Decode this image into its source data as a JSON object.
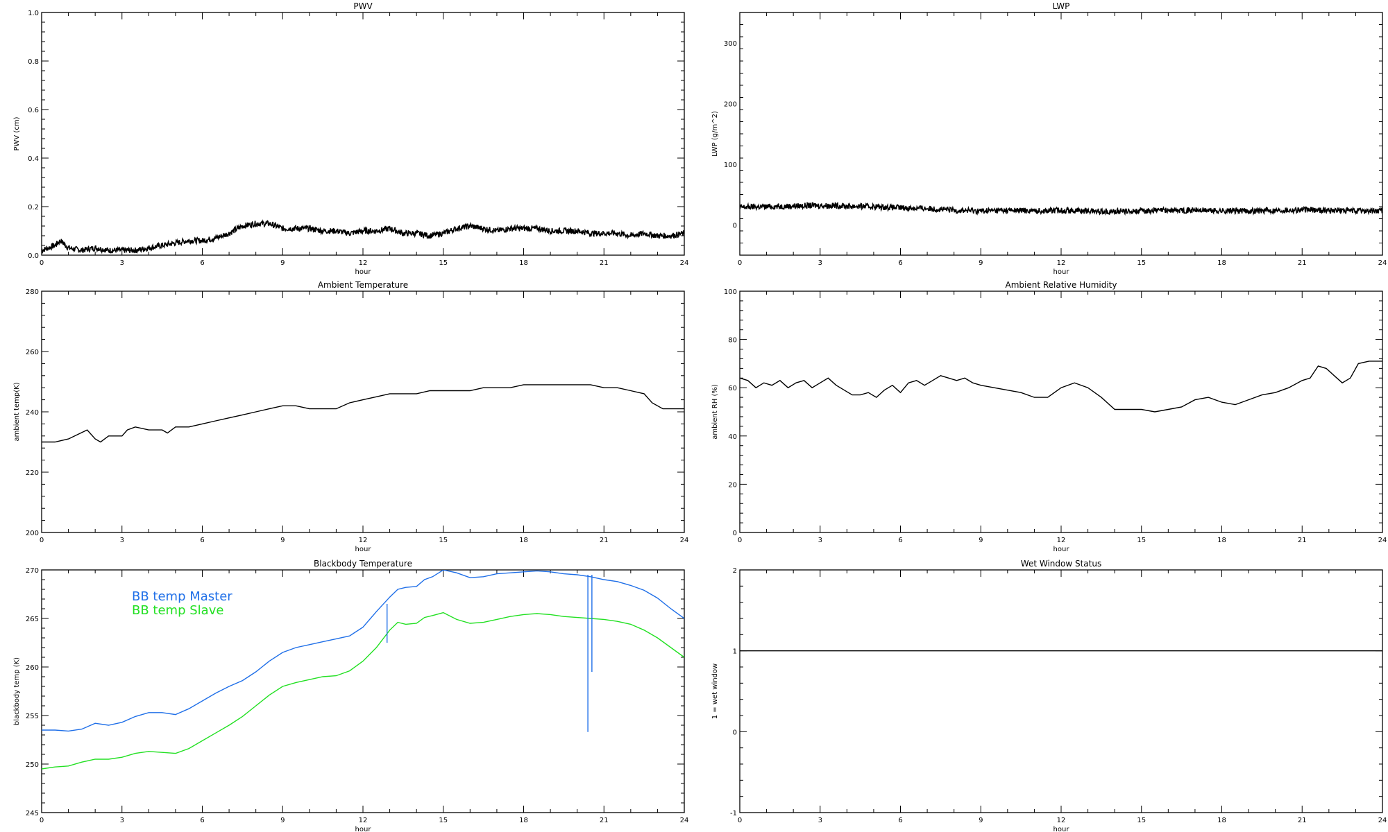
{
  "chart_data": [
    {
      "id": "pwv",
      "type": "line",
      "title": "PWV",
      "xlabel": "hour",
      "ylabel": "PWV (cm)",
      "xlim": [
        0,
        24
      ],
      "ylim": [
        0,
        1.0
      ],
      "xticks": [
        0,
        3,
        6,
        9,
        12,
        15,
        18,
        21,
        24
      ],
      "yticks": [
        0.0,
        0.2,
        0.4,
        0.6,
        0.8,
        1.0
      ],
      "ytick_labels": [
        "0.0",
        "0.2",
        "0.4",
        "0.6",
        "0.8",
        "1.0"
      ],
      "grid": false,
      "style": "scatter-dense",
      "series": [
        {
          "color": "#000000",
          "x": [
            0,
            0.5,
            0.7,
            1.0,
            1.5,
            2.0,
            2.5,
            3.0,
            3.5,
            4.0,
            4.5,
            5.0,
            5.5,
            6.0,
            6.5,
            7.0,
            7.5,
            8.0,
            8.5,
            9.0,
            9.5,
            10.0,
            10.5,
            11.0,
            11.5,
            12.0,
            12.5,
            13.0,
            13.5,
            14.0,
            14.5,
            15.0,
            15.5,
            16.0,
            16.5,
            17.0,
            17.5,
            18.0,
            18.5,
            19.0,
            19.5,
            20.0,
            20.5,
            21.0,
            21.5,
            22.0,
            22.5,
            23.0,
            23.5,
            24.0
          ],
          "y": [
            0.02,
            0.04,
            0.06,
            0.03,
            0.02,
            0.03,
            0.02,
            0.02,
            0.02,
            0.03,
            0.04,
            0.05,
            0.06,
            0.06,
            0.07,
            0.09,
            0.12,
            0.13,
            0.13,
            0.11,
            0.11,
            0.11,
            0.1,
            0.1,
            0.09,
            0.1,
            0.1,
            0.11,
            0.09,
            0.09,
            0.08,
            0.09,
            0.11,
            0.12,
            0.11,
            0.1,
            0.11,
            0.11,
            0.11,
            0.1,
            0.1,
            0.1,
            0.09,
            0.09,
            0.09,
            0.08,
            0.09,
            0.08,
            0.08,
            0.09
          ]
        }
      ]
    },
    {
      "id": "lwp",
      "type": "line",
      "title": "LWP",
      "xlabel": "hour",
      "ylabel": "LWP (g/m^2)",
      "xlim": [
        0,
        24
      ],
      "ylim": [
        -50,
        350
      ],
      "xticks": [
        0,
        3,
        6,
        9,
        12,
        15,
        18,
        21,
        24
      ],
      "yticks": [
        0,
        100,
        200,
        300
      ],
      "ytick_labels": [
        "0",
        "100",
        "200",
        "300"
      ],
      "grid": false,
      "style": "scatter-dense",
      "series": [
        {
          "color": "#000000",
          "x": [
            0,
            1,
            2,
            3,
            4,
            5,
            6,
            7,
            8,
            9,
            10,
            11,
            12,
            13,
            14,
            15,
            16,
            17,
            18,
            19,
            20,
            21,
            22,
            23,
            24
          ],
          "y": [
            29,
            30,
            31,
            32,
            31,
            30,
            28,
            27,
            24,
            23,
            24,
            23,
            24,
            23,
            22,
            23,
            24,
            24,
            23,
            23,
            24,
            25,
            24,
            23,
            23
          ]
        }
      ]
    },
    {
      "id": "ambient-temperature",
      "type": "line",
      "title": "Ambient Temperature",
      "xlabel": "hour",
      "ylabel": "ambient temp(K)",
      "xlim": [
        0,
        24
      ],
      "ylim": [
        200,
        280
      ],
      "xticks": [
        0,
        3,
        6,
        9,
        12,
        15,
        18,
        21,
        24
      ],
      "yticks": [
        200,
        220,
        240,
        260,
        280
      ],
      "ytick_labels": [
        "200",
        "220",
        "240",
        "260",
        "280"
      ],
      "grid": false,
      "style": "line",
      "series": [
        {
          "color": "#000000",
          "x": [
            0,
            0.5,
            1.0,
            1.7,
            2.0,
            2.2,
            2.5,
            3.0,
            3.2,
            3.5,
            4.0,
            4.5,
            4.7,
            5.0,
            5.5,
            6.0,
            6.5,
            7.0,
            7.5,
            8.0,
            8.5,
            9.0,
            9.5,
            10.0,
            10.5,
            11.0,
            11.5,
            12.0,
            12.5,
            13.0,
            13.5,
            14.0,
            14.5,
            15.0,
            15.5,
            16.0,
            16.5,
            17.0,
            17.5,
            18.0,
            18.5,
            19.0,
            19.5,
            20.0,
            20.5,
            21.0,
            21.5,
            22.0,
            22.5,
            22.8,
            23.2,
            23.6,
            24.0
          ],
          "y": [
            230,
            230,
            231,
            234,
            231,
            230,
            232,
            232,
            234,
            235,
            234,
            234,
            233,
            235,
            235,
            236,
            237,
            238,
            239,
            240,
            241,
            242,
            242,
            241,
            241,
            241,
            243,
            244,
            245,
            246,
            246,
            246,
            247,
            247,
            247,
            247,
            248,
            248,
            248,
            249,
            249,
            249,
            249,
            249,
            249,
            248,
            248,
            247,
            246,
            243,
            241,
            241,
            241
          ]
        }
      ]
    },
    {
      "id": "ambient-relative-humidity",
      "type": "line",
      "title": "Ambient Relative Humidity",
      "xlabel": "hour",
      "ylabel": "ambient RH (%)",
      "xlim": [
        0,
        24
      ],
      "ylim": [
        0,
        100
      ],
      "xticks": [
        0,
        3,
        6,
        9,
        12,
        15,
        18,
        21,
        24
      ],
      "yticks": [
        0,
        20,
        40,
        60,
        80,
        100
      ],
      "ytick_labels": [
        "0",
        "20",
        "40",
        "60",
        "80",
        "100"
      ],
      "grid": false,
      "style": "line",
      "series": [
        {
          "color": "#000000",
          "x": [
            0,
            0.3,
            0.6,
            0.9,
            1.2,
            1.5,
            1.8,
            2.1,
            2.4,
            2.7,
            3.0,
            3.3,
            3.6,
            3.9,
            4.2,
            4.5,
            4.8,
            5.1,
            5.4,
            5.7,
            6.0,
            6.3,
            6.6,
            6.9,
            7.2,
            7.5,
            7.8,
            8.1,
            8.4,
            8.7,
            9.0,
            9.5,
            10.0,
            10.5,
            11.0,
            11.5,
            12.0,
            12.5,
            13.0,
            13.5,
            14.0,
            14.5,
            15.0,
            15.5,
            16.0,
            16.5,
            17.0,
            17.5,
            18.0,
            18.5,
            19.0,
            19.5,
            20.0,
            20.5,
            21.0,
            21.3,
            21.6,
            21.9,
            22.2,
            22.5,
            22.8,
            23.1,
            23.5,
            24.0
          ],
          "y": [
            64,
            63,
            60,
            62,
            61,
            63,
            60,
            62,
            63,
            60,
            62,
            64,
            61,
            59,
            57,
            57,
            58,
            56,
            59,
            61,
            58,
            62,
            63,
            61,
            63,
            65,
            64,
            63,
            64,
            62,
            61,
            60,
            59,
            58,
            56,
            56,
            60,
            62,
            60,
            56,
            51,
            51,
            51,
            50,
            51,
            52,
            55,
            56,
            54,
            53,
            55,
            57,
            58,
            60,
            63,
            64,
            69,
            68,
            65,
            62,
            64,
            70,
            71,
            71
          ]
        }
      ]
    },
    {
      "id": "blackbody-temperature",
      "type": "line",
      "title": "Blackbody Temperature",
      "xlabel": "hour",
      "ylabel": "blackbody temp (K)",
      "xlim": [
        0,
        24
      ],
      "ylim": [
        245,
        270
      ],
      "xticks": [
        0,
        3,
        6,
        9,
        12,
        15,
        18,
        21,
        24
      ],
      "yticks": [
        245,
        250,
        255,
        260,
        265,
        270
      ],
      "ytick_labels": [
        "245",
        "250",
        "255",
        "260",
        "265",
        "270"
      ],
      "grid": false,
      "style": "line",
      "legend": [
        "BB temp Master",
        "BB temp Slave"
      ],
      "legend_colors": [
        "#1f6fe8",
        "#22e022"
      ],
      "spikes": [
        {
          "color": "#1f6fe8",
          "x": 12.9,
          "y_from": 266.5,
          "y_to": 262.5
        },
        {
          "color": "#1f6fe8",
          "x": 20.4,
          "y_from": 269.5,
          "y_to": 253.3
        },
        {
          "color": "#1f6fe8",
          "x": 20.55,
          "y_from": 269.5,
          "y_to": 259.5
        }
      ],
      "series": [
        {
          "color": "#1f6fe8",
          "x": [
            0,
            0.5,
            1.0,
            1.5,
            2.0,
            2.5,
            3.0,
            3.5,
            4.0,
            4.5,
            5.0,
            5.5,
            6.0,
            6.5,
            7.0,
            7.5,
            8.0,
            8.5,
            9.0,
            9.5,
            10.0,
            10.5,
            11.0,
            11.5,
            12.0,
            12.5,
            13.0,
            13.3,
            13.6,
            14.0,
            14.3,
            14.6,
            15.0,
            15.5,
            16.0,
            16.5,
            17.0,
            17.5,
            18.0,
            18.5,
            19.0,
            19.5,
            20.0,
            20.5,
            21.0,
            21.5,
            22.0,
            22.5,
            23.0,
            23.5,
            24.0
          ],
          "y": [
            253.5,
            253.5,
            253.4,
            253.6,
            254.2,
            254.0,
            254.3,
            254.9,
            255.3,
            255.3,
            255.1,
            255.7,
            256.5,
            257.3,
            258.0,
            258.6,
            259.5,
            260.6,
            261.5,
            262.0,
            262.3,
            262.6,
            262.9,
            263.2,
            264.1,
            265.7,
            267.2,
            268.0,
            268.2,
            268.3,
            269.0,
            269.3,
            270.0,
            269.7,
            269.2,
            269.3,
            269.6,
            269.7,
            269.8,
            269.9,
            269.8,
            269.6,
            269.5,
            269.3,
            269.0,
            268.8,
            268.4,
            267.9,
            267.1,
            266.0,
            265.0
          ]
        },
        {
          "color": "#22e022",
          "x": [
            0,
            0.5,
            1.0,
            1.5,
            2.0,
            2.5,
            3.0,
            3.5,
            4.0,
            4.5,
            5.0,
            5.5,
            6.0,
            6.5,
            7.0,
            7.5,
            8.0,
            8.5,
            9.0,
            9.5,
            10.0,
            10.5,
            11.0,
            11.5,
            12.0,
            12.5,
            13.0,
            13.3,
            13.6,
            14.0,
            14.3,
            14.6,
            15.0,
            15.5,
            16.0,
            16.5,
            17.0,
            17.5,
            18.0,
            18.5,
            19.0,
            19.5,
            20.0,
            20.5,
            21.0,
            21.5,
            22.0,
            22.5,
            23.0,
            23.5,
            24.0
          ],
          "y": [
            249.5,
            249.7,
            249.8,
            250.2,
            250.5,
            250.5,
            250.7,
            251.1,
            251.3,
            251.2,
            251.1,
            251.6,
            252.4,
            253.2,
            254.0,
            254.9,
            256.0,
            257.1,
            258.0,
            258.4,
            258.7,
            259.0,
            259.1,
            259.6,
            260.6,
            262.0,
            263.8,
            264.6,
            264.4,
            264.5,
            265.1,
            265.3,
            265.6,
            264.9,
            264.5,
            264.6,
            264.9,
            265.2,
            265.4,
            265.5,
            265.4,
            265.2,
            265.1,
            265.0,
            264.9,
            264.7,
            264.4,
            263.8,
            263.0,
            262.0,
            261.0
          ]
        }
      ]
    },
    {
      "id": "wet-window-status",
      "type": "line",
      "title": "Wet Window Status",
      "xlabel": "hour",
      "ylabel": "1 = wet window",
      "xlim": [
        0,
        24
      ],
      "ylim": [
        -1,
        2
      ],
      "xticks": [
        0,
        3,
        6,
        9,
        12,
        15,
        18,
        21,
        24
      ],
      "yticks": [
        -1,
        0,
        1,
        2
      ],
      "ytick_labels": [
        "-1",
        "0",
        "1",
        "2"
      ],
      "grid": false,
      "style": "line",
      "series": [
        {
          "color": "#000000",
          "x": [
            0,
            24
          ],
          "y": [
            1,
            1
          ]
        }
      ]
    }
  ]
}
